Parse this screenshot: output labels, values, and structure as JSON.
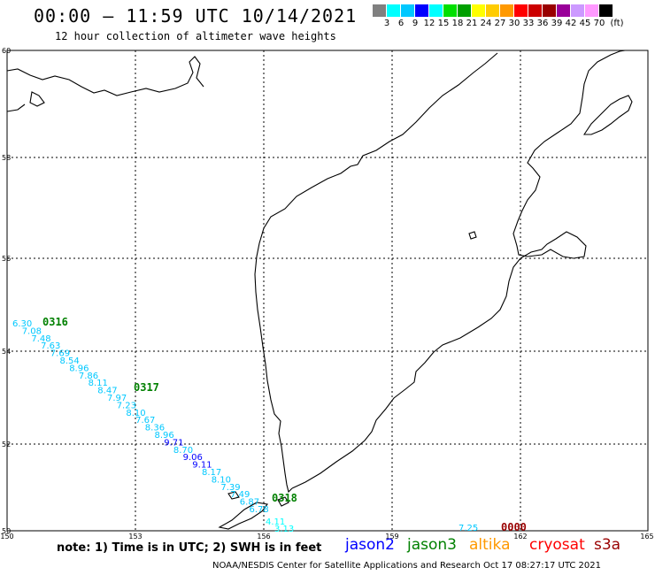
{
  "header": {
    "title": "00:00 – 11:59 UTC 10/14/2021",
    "subtitle": "12 hour collection of altimeter wave heights"
  },
  "color_scale": {
    "colors": [
      "#808080",
      "#00ffff",
      "#00c8ff",
      "#0000ff",
      "#00ffff",
      "#00e000",
      "#00a000",
      "#ffff00",
      "#ffcc00",
      "#ff9900",
      "#ff0000",
      "#cc0000",
      "#990000",
      "#990099",
      "#cc99ff",
      "#ff99ff",
      "#000000"
    ],
    "labels": [
      "3",
      "6",
      "9",
      "12",
      "15",
      "18",
      "21",
      "24",
      "27",
      "30",
      "33",
      "36",
      "39",
      "42",
      "45",
      "70",
      "(ft)"
    ]
  },
  "map": {
    "lat_labels": [
      "60",
      "58",
      "56",
      "54",
      "52",
      "50"
    ],
    "lon_labels": [
      "150",
      "153",
      "156",
      "159",
      "162",
      "165"
    ],
    "pass_labels": [
      {
        "text": "0316",
        "color": "#008000"
      },
      {
        "text": "0317",
        "color": "#008000"
      },
      {
        "text": "0318",
        "color": "#008000"
      },
      {
        "text": "0000",
        "color": "#990000"
      }
    ],
    "track_values": [
      "6.30",
      "7.08",
      "7.48",
      "7.63",
      "7.69",
      "8.54",
      "8.96",
      "7.86",
      "8.11",
      "8.47",
      "7.97",
      "7.23",
      "8.10",
      "7.67",
      "8.36",
      "8.96",
      "9.71",
      "8.70",
      "9.06",
      "9.11",
      "8.17",
      "8.10",
      "7.39",
      "7.49",
      "6.87",
      "6.78",
      "4.11",
      "3.13",
      "7.25"
    ]
  },
  "footer": {
    "note": "note: 1) Time is in UTC; 2) SWH is in feet",
    "satellites": [
      {
        "name": "jason2",
        "color": "#0000ff"
      },
      {
        "name": "jason3",
        "color": "#008000"
      },
      {
        "name": "altika",
        "color": "#ff9900"
      },
      {
        "name": "cryosat",
        "color": "#ff0000"
      },
      {
        "name": "s3a",
        "color": "#990000"
      }
    ],
    "credit": "NOAA/NESDIS Center for Satellite Applications and Research   Oct 17 08:27:17 UTC 2021"
  }
}
